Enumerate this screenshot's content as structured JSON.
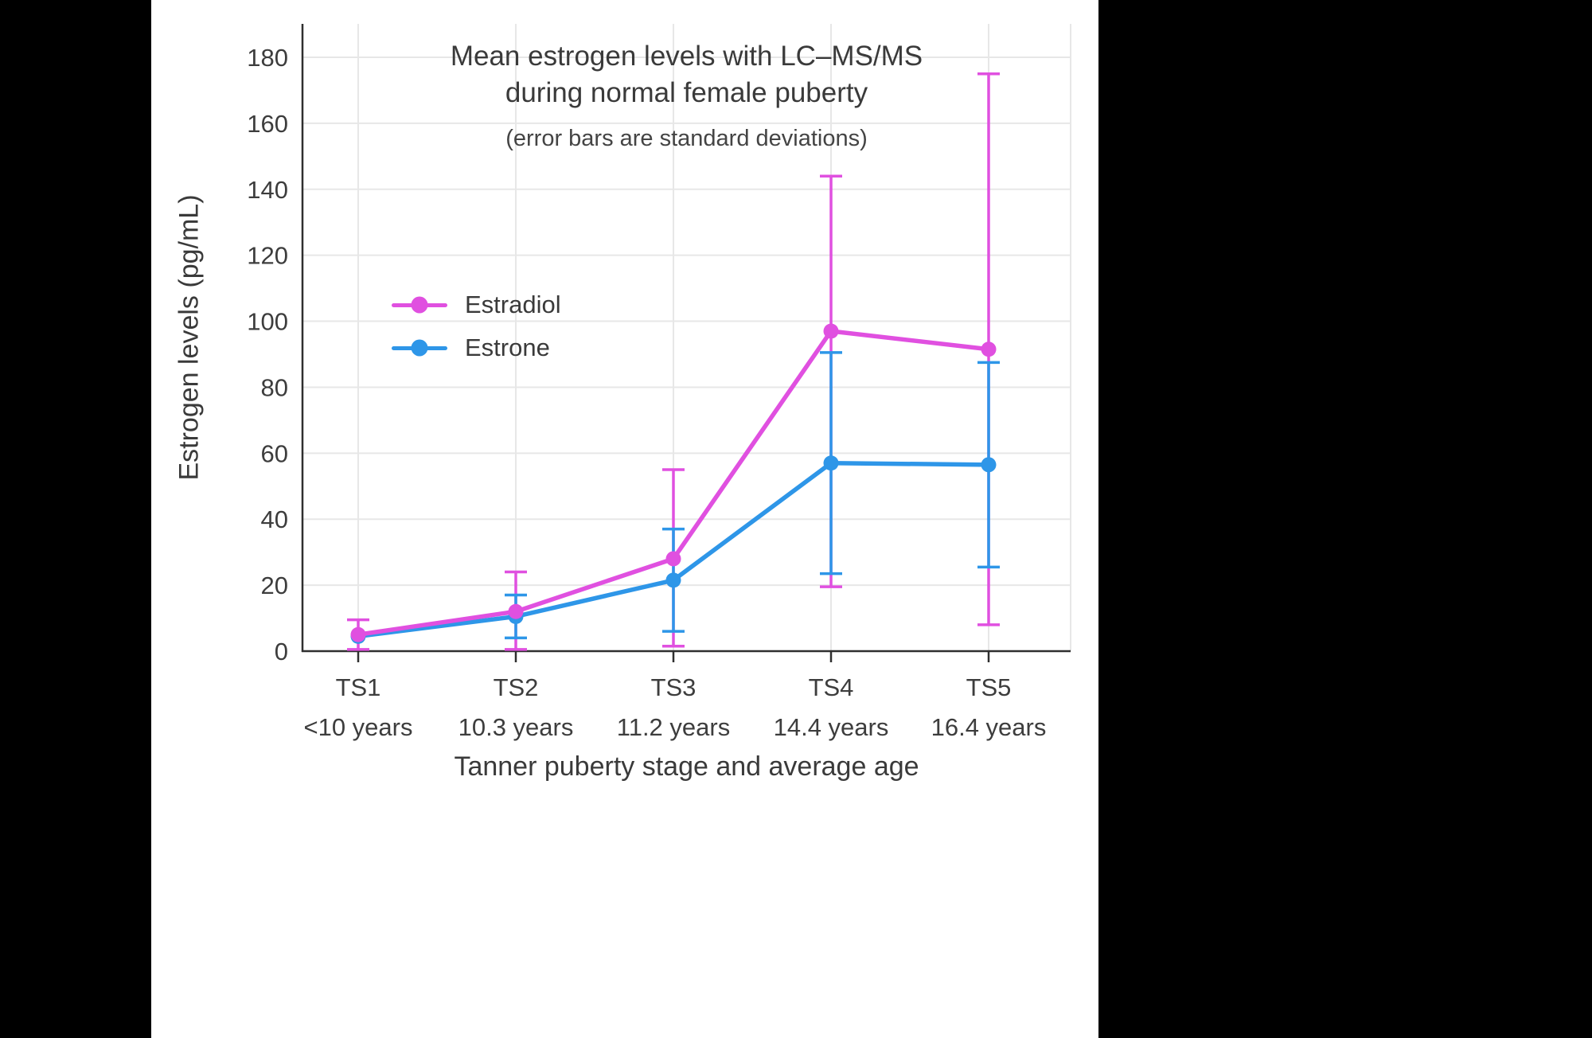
{
  "chart_data": {
    "type": "line",
    "title": "Mean estrogen levels with LC–MS/MS",
    "title_line2": "during normal female puberty",
    "subtitle": "(error bars are standard deviations)",
    "xlabel": "Tanner puberty stage and average age",
    "ylabel": "Estrogen levels (pg/mL)",
    "ylim": [
      0,
      190
    ],
    "yticks": [
      0,
      20,
      40,
      60,
      80,
      100,
      120,
      140,
      160,
      180
    ],
    "grid": true,
    "legend_position": "inside-upper-left",
    "categories": [
      "TS1",
      "TS2",
      "TS3",
      "TS4",
      "TS5"
    ],
    "category_sublabels": [
      "<10 years",
      "10.3 years",
      "11.2 years",
      "14.4 years",
      "16.4 years"
    ],
    "series": [
      {
        "name": "Estradiol",
        "color": "#e050e0",
        "values": [
          5,
          12,
          28,
          97,
          91.5
        ],
        "error_low": [
          0.5,
          0.5,
          1.5,
          19.5,
          8
        ],
        "error_high": [
          9.5,
          24,
          55,
          144,
          175
        ]
      },
      {
        "name": "Estrone",
        "color": "#2e96e8",
        "values": [
          4.5,
          10.5,
          21.5,
          57,
          56.5
        ],
        "error_low": [
          null,
          4,
          6,
          23.5,
          25.5
        ],
        "error_high": [
          null,
          17,
          37,
          90.5,
          87.5
        ]
      }
    ],
    "colors": {
      "grid": "#e7e7e7",
      "axis": "#2f2f2f",
      "text": "#3d3d3d"
    }
  }
}
